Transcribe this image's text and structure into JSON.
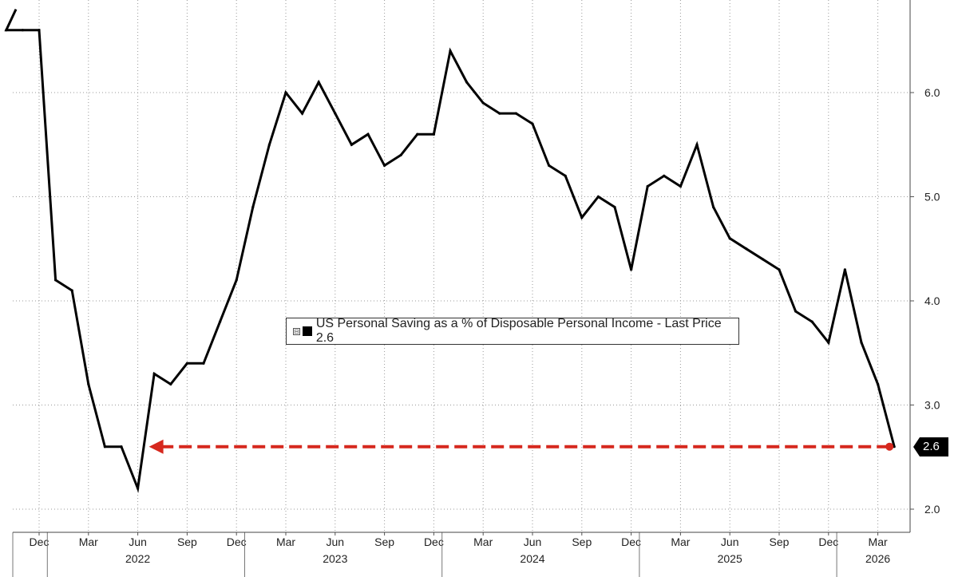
{
  "chart_data": {
    "type": "line",
    "legend": {
      "text": "US Personal Saving as a % of Disposable Personal Income - Last Price 2.6",
      "toggle_glyph": "⊟",
      "swatch_color": "#000000"
    },
    "last_value_label": "2.6",
    "ylim": [
      1.8,
      6.9
    ],
    "y_ticks": [
      "2.0",
      "3.0",
      "4.0",
      "5.0",
      "6.0"
    ],
    "y_tick_values": [
      2.0,
      3.0,
      4.0,
      5.0,
      6.0
    ],
    "y_axis_position": "right",
    "grid": true,
    "x_month_labels": [
      "Dec",
      "Mar",
      "Jun",
      "Sep",
      "Dec",
      "Mar",
      "Jun",
      "Sep",
      "Dec",
      "Mar",
      "Jun",
      "Sep",
      "Dec",
      "Mar",
      "Jun",
      "Sep",
      "Dec",
      "Mar"
    ],
    "x_month_dates": [
      "2021-12",
      "2022-03",
      "2022-06",
      "2022-09",
      "2022-12",
      "2023-03",
      "2023-06",
      "2023-09",
      "2023-12",
      "2024-03",
      "2024-06",
      "2024-09",
      "2024-12",
      "2025-03",
      "2025-06",
      "2025-09",
      "2025-12",
      "2026-03"
    ],
    "x_year_labels": [
      "2022",
      "2023",
      "2024",
      "2025",
      "2026"
    ],
    "x_year_dates": [
      "2022-06",
      "2023-06",
      "2024-06",
      "2025-06",
      "2026-03"
    ],
    "series": [
      {
        "color": "#000000",
        "x": [
          "2021-10",
          "2021-11",
          "2021-12",
          "2022-01",
          "2022-02",
          "2022-03",
          "2022-04",
          "2022-05",
          "2022-06",
          "2022-07",
          "2022-08",
          "2022-09",
          "2022-10",
          "2022-11",
          "2022-12",
          "2023-01",
          "2023-02",
          "2023-03",
          "2023-04",
          "2023-05",
          "2023-06",
          "2023-07",
          "2023-08",
          "2023-09",
          "2023-10",
          "2023-11",
          "2023-12",
          "2024-01",
          "2024-02",
          "2024-03",
          "2024-04",
          "2024-05",
          "2024-06",
          "2024-07",
          "2024-08",
          "2024-09",
          "2024-10",
          "2024-11",
          "2024-12",
          "2025-01",
          "2025-02",
          "2025-03",
          "2025-04",
          "2025-05",
          "2025-06",
          "2025-07",
          "2025-08",
          "2025-09",
          "2025-10",
          "2025-11",
          "2025-12",
          "2026-01",
          "2026-02",
          "2026-03",
          "2026-04"
        ],
        "values": [
          6.6,
          6.6,
          6.6,
          4.2,
          4.1,
          3.2,
          2.6,
          2.6,
          2.2,
          3.3,
          3.2,
          3.4,
          3.4,
          3.8,
          4.2,
          4.9,
          5.5,
          6.0,
          5.8,
          6.1,
          5.8,
          5.5,
          5.6,
          5.3,
          5.4,
          5.6,
          5.6,
          6.4,
          6.1,
          5.9,
          5.8,
          5.8,
          5.7,
          5.3,
          5.2,
          4.8,
          5.0,
          4.9,
          4.3,
          5.1,
          5.2,
          5.1,
          5.5,
          4.9,
          4.6,
          4.5,
          4.4,
          4.3,
          3.9,
          3.8,
          3.6,
          4.3,
          3.6,
          3.2,
          2.6
        ],
        "pre_start_value": 6.8
      }
    ],
    "annotation": {
      "type": "dashed-arrow",
      "color": "#d6281e",
      "from_date": "2026-04",
      "to_date": "2022-06",
      "value": 2.6
    }
  }
}
